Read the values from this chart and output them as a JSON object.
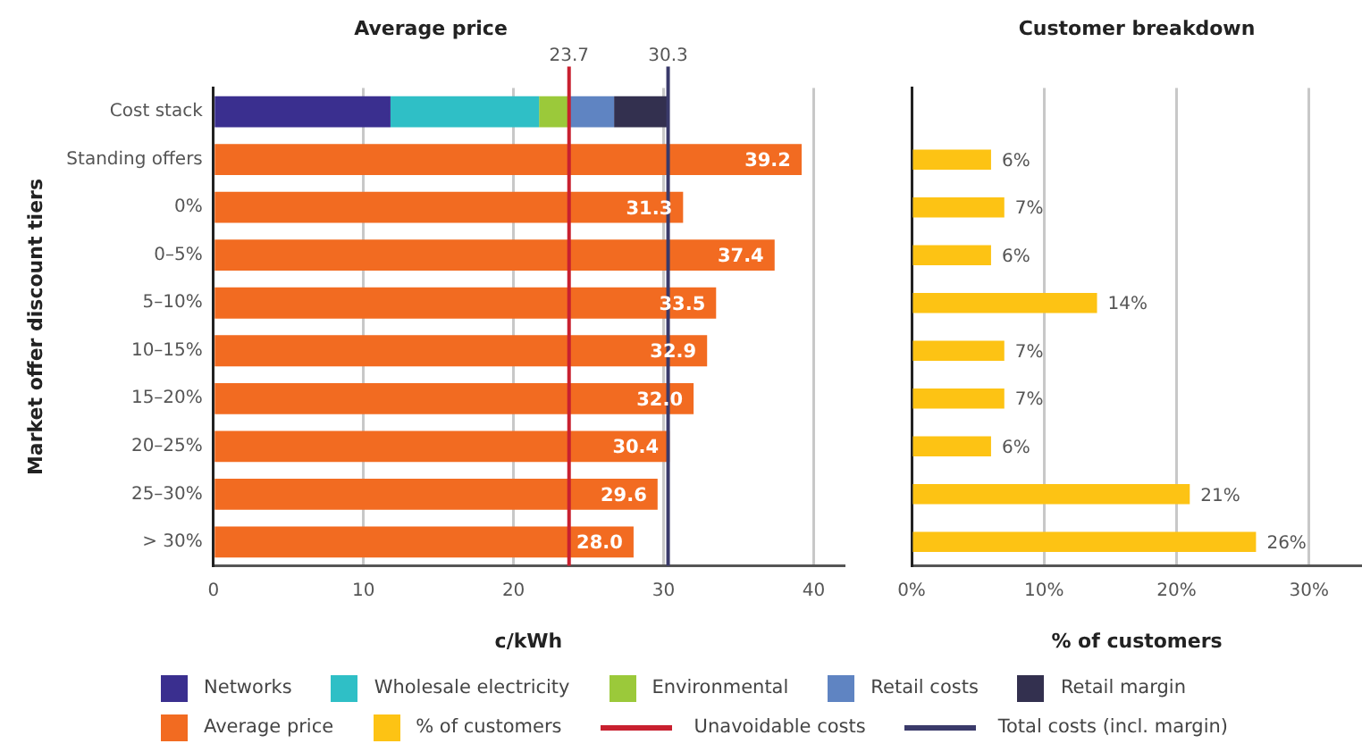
{
  "chart_data": [
    {
      "type": "bar",
      "orientation": "horizontal",
      "stacked": true,
      "title": "Average price",
      "xlabel": "c/kWh",
      "ylabel": "Market offer discount tiers",
      "categories": [
        "Cost stack",
        "Standing offers",
        "0%",
        "0–5%",
        "5–10%",
        "10–15%",
        "15–20%",
        "20–25%",
        "25–30%",
        "> 30%"
      ],
      "series": [
        {
          "name": "Networks",
          "color": "#3a2f8f",
          "values": [
            11.8,
            null,
            null,
            null,
            null,
            null,
            null,
            null,
            null,
            null
          ]
        },
        {
          "name": "Wholesale electricity",
          "color": "#2fbfc6",
          "values": [
            9.9,
            null,
            null,
            null,
            null,
            null,
            null,
            null,
            null,
            null
          ]
        },
        {
          "name": "Environmental",
          "color": "#9bc93a",
          "values": [
            2.0,
            null,
            null,
            null,
            null,
            null,
            null,
            null,
            null,
            null
          ]
        },
        {
          "name": "Retail costs",
          "color": "#5f84c2",
          "values": [
            3.0,
            null,
            null,
            null,
            null,
            null,
            null,
            null,
            null,
            null
          ]
        },
        {
          "name": "Retail margin",
          "color": "#33304f",
          "values": [
            3.6,
            null,
            null,
            null,
            null,
            null,
            null,
            null,
            null,
            null
          ]
        },
        {
          "name": "Average price",
          "color": "#f26b21",
          "values": [
            null,
            39.2,
            31.3,
            37.4,
            33.5,
            32.9,
            32.0,
            30.4,
            29.6,
            28.0
          ],
          "value_labels": [
            null,
            "39.2",
            "31.3",
            "37.4",
            "33.5",
            "32.9",
            "32.0",
            "30.4",
            "29.6",
            "28.0"
          ]
        }
      ],
      "xlim": [
        0,
        42
      ],
      "xticks": [
        0,
        10,
        20,
        30,
        40
      ],
      "grid": "x",
      "legend": "bottom",
      "ref_lines": [
        {
          "axis": "x",
          "value": 23.7,
          "label": "Unavoidable costs",
          "color": "#c8202f"
        },
        {
          "axis": "x",
          "value": 30.3,
          "label": "Total costs (incl. margin)",
          "color": "#3a3a6a"
        }
      ],
      "annotations": [
        "23.7",
        "30.3"
      ]
    },
    {
      "type": "bar",
      "orientation": "horizontal",
      "title": "Customer breakdown",
      "xlabel": "% of customers",
      "tick_labels": "x",
      "categories": [
        null,
        null,
        null,
        null,
        null,
        null,
        null,
        null,
        null,
        null
      ],
      "series": [
        {
          "name": "% of customers",
          "color": "#fdc314",
          "values": [
            null,
            6,
            7,
            6,
            14,
            7,
            7,
            6,
            21,
            26
          ],
          "value_labels": [
            null,
            "6%",
            "7%",
            "6%",
            "14%",
            "7%",
            "7%",
            "6%",
            "21%",
            "26%"
          ]
        }
      ],
      "xlim": [
        0,
        34
      ],
      "xticks": [
        {
          "value": 0,
          "label": "0%"
        },
        {
          "value": 10,
          "label": "10%"
        },
        {
          "value": 20,
          "label": "20%"
        },
        {
          "value": 30,
          "label": "30%"
        }
      ],
      "grid": "x",
      "legend": "bottom"
    }
  ]
}
